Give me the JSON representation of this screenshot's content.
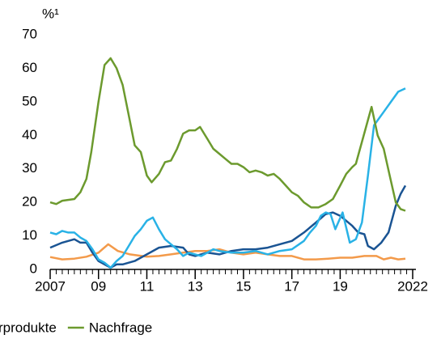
{
  "chart_data": {
    "type": "line",
    "y_unit": "%¹",
    "xlim": [
      2007,
      2022
    ],
    "xticks": [
      {
        "value": 2007,
        "label": "2007"
      },
      {
        "value": 2009,
        "label": "09"
      },
      {
        "value": 2011,
        "label": "11"
      },
      {
        "value": 2013,
        "label": "13"
      },
      {
        "value": 2015,
        "label": "15"
      },
      {
        "value": 2017,
        "label": "17"
      },
      {
        "value": 2019,
        "label": "19"
      },
      {
        "value": 2022,
        "label": "2022"
      }
    ],
    "ylim": [
      0,
      70
    ],
    "yticks": [
      0,
      10,
      20,
      30,
      40,
      50,
      60,
      70
    ],
    "grid": false,
    "series": [
      {
        "name": "rprodukte",
        "color": "#f39a4a",
        "x": [
          2007,
          2007.5,
          2008,
          2008.5,
          2009,
          2009.4,
          2009.8,
          2010.3,
          2011,
          2011.5,
          2012,
          2012.5,
          2013,
          2013.5,
          2014,
          2014.5,
          2015,
          2015.5,
          2016,
          2016.5,
          2017,
          2017.5,
          2018,
          2018.5,
          2019,
          2019.5,
          2020,
          2020.5,
          2020.8,
          2021.1,
          2021.4,
          2021.7
        ],
        "values": [
          3.7,
          3,
          3.2,
          3.8,
          5,
          7.5,
          5.5,
          4.5,
          3.8,
          4,
          4.5,
          5,
          5.5,
          5.5,
          6,
          5,
          4.5,
          5,
          4.5,
          4,
          4,
          3,
          3,
          3.2,
          3.5,
          3.5,
          4,
          4,
          3,
          3.5,
          3,
          3.2
        ]
      },
      {
        "color": "#1a5493",
        "x": [
          2007,
          2007.5,
          2008,
          2008.25,
          2008.5,
          2008.75,
          2009,
          2009.25,
          2009.5,
          2009.75,
          2010,
          2010.5,
          2011,
          2011.5,
          2012,
          2012.5,
          2012.75,
          2013,
          2013.5,
          2014,
          2014.5,
          2015,
          2015.5,
          2016,
          2016.5,
          2017,
          2017.5,
          2018,
          2018.4,
          2018.7,
          2019,
          2019.5,
          2019.75,
          2020,
          2020.15,
          2020.4,
          2020.7,
          2021,
          2021.3,
          2021.5,
          2021.7
        ],
        "values": [
          6.5,
          8,
          9,
          8,
          8,
          5,
          2.5,
          1.5,
          0.5,
          1.5,
          1.5,
          2.5,
          4.5,
          6.5,
          7,
          6.5,
          4.5,
          4,
          5,
          4.5,
          5.5,
          6,
          6,
          6.5,
          7.5,
          8.5,
          11,
          14,
          16.5,
          17,
          16,
          13,
          11,
          10.5,
          7,
          6,
          8,
          11,
          19,
          22.5,
          25
        ]
      },
      {
        "color": "#29b2e6",
        "x": [
          2007,
          2007.25,
          2007.5,
          2007.75,
          2008,
          2008.25,
          2008.5,
          2008.75,
          2009,
          2009.25,
          2009.5,
          2009.75,
          2010,
          2010.25,
          2010.5,
          2010.75,
          2011,
          2011.25,
          2011.5,
          2011.75,
          2012,
          2012.25,
          2012.5,
          2012.75,
          2013,
          2013.25,
          2013.5,
          2013.75,
          2014,
          2014.5,
          2015,
          2015.5,
          2016,
          2016.5,
          2017,
          2017.5,
          2017.75,
          2018,
          2018.2,
          2018.4,
          2018.6,
          2018.8,
          2019.1,
          2019.4,
          2019.65,
          2019.9,
          2020.15,
          2020.4,
          2020.8,
          2021.1,
          2021.4,
          2021.7
        ],
        "values": [
          11,
          10.5,
          11.5,
          11,
          11,
          9.5,
          8.5,
          6,
          3,
          2,
          0.5,
          2.5,
          4,
          7,
          10,
          12,
          14.5,
          15.5,
          12,
          9,
          7.5,
          6,
          4,
          5,
          4.5,
          4,
          5,
          6,
          5.5,
          5,
          5,
          5.5,
          4.5,
          5.5,
          6,
          8.5,
          11,
          13,
          16,
          17,
          16.5,
          12,
          17,
          8,
          9,
          14,
          28,
          43,
          47,
          50,
          53,
          54
        ]
      },
      {
        "name": "Nachfrage",
        "color": "#6c9a2e",
        "x": [
          2007,
          2007.25,
          2007.5,
          2008,
          2008.25,
          2008.5,
          2008.7,
          2009,
          2009.25,
          2009.5,
          2009.75,
          2010,
          2010.25,
          2010.5,
          2010.75,
          2011,
          2011.2,
          2011.5,
          2011.75,
          2012,
          2012.25,
          2012.5,
          2012.75,
          2013,
          2013.2,
          2013.5,
          2013.75,
          2014,
          2014.25,
          2014.5,
          2014.75,
          2015,
          2015.25,
          2015.5,
          2015.75,
          2016,
          2016.25,
          2016.5,
          2016.75,
          2017,
          2017.25,
          2017.5,
          2017.8,
          2018.1,
          2018.4,
          2018.7,
          2019,
          2019.25,
          2019.5,
          2019.65,
          2020.05,
          2020.3,
          2020.55,
          2020.8,
          2021.05,
          2021.3,
          2021.5,
          2021.7
        ],
        "values": [
          20,
          19.5,
          20.5,
          21,
          23,
          27,
          35,
          50,
          61,
          63,
          60,
          55,
          46,
          37,
          35,
          28,
          26,
          28.5,
          32,
          32.5,
          36,
          40.5,
          41.5,
          41.5,
          42.5,
          39,
          36,
          34.5,
          33,
          31.5,
          31.5,
          30.5,
          29,
          29.5,
          29,
          28,
          28.5,
          27,
          25,
          23,
          22,
          20,
          18.5,
          18.5,
          19.5,
          21,
          25,
          28.5,
          30.5,
          31.5,
          42,
          48.5,
          40,
          36,
          28,
          20,
          18,
          17.5
        ]
      }
    ]
  }
}
